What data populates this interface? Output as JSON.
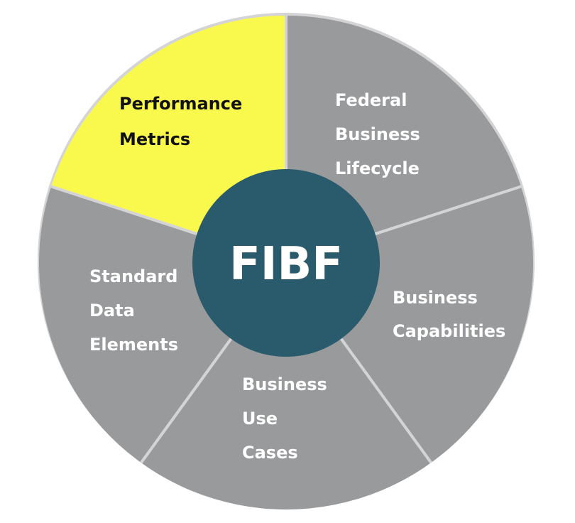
{
  "center": {
    "label": "FIBF",
    "color": "#2a5b6c",
    "text_color": "#ffffff"
  },
  "segments": [
    {
      "id": "performance-metrics",
      "lines": [
        "Performance",
        "Metrics"
      ],
      "fill": "#f9f94d",
      "text_color": "#111111"
    },
    {
      "id": "federal-business-lifecycle",
      "lines": [
        "Federal",
        "Business",
        "Lifecycle"
      ],
      "fill": "#999a9c",
      "text_color": "#ffffff"
    },
    {
      "id": "business-capabilities",
      "lines": [
        "Business",
        "Capabilities"
      ],
      "fill": "#999a9c",
      "text_color": "#ffffff"
    },
    {
      "id": "business-use-cases",
      "lines": [
        "Business",
        "Use",
        "Cases"
      ],
      "fill": "#999a9c",
      "text_color": "#ffffff"
    },
    {
      "id": "standard-data-elements",
      "lines": [
        "Standard",
        "Data",
        "Elements"
      ],
      "fill": "#999a9c",
      "text_color": "#ffffff"
    }
  ],
  "separator_color": "#d4d4d6"
}
